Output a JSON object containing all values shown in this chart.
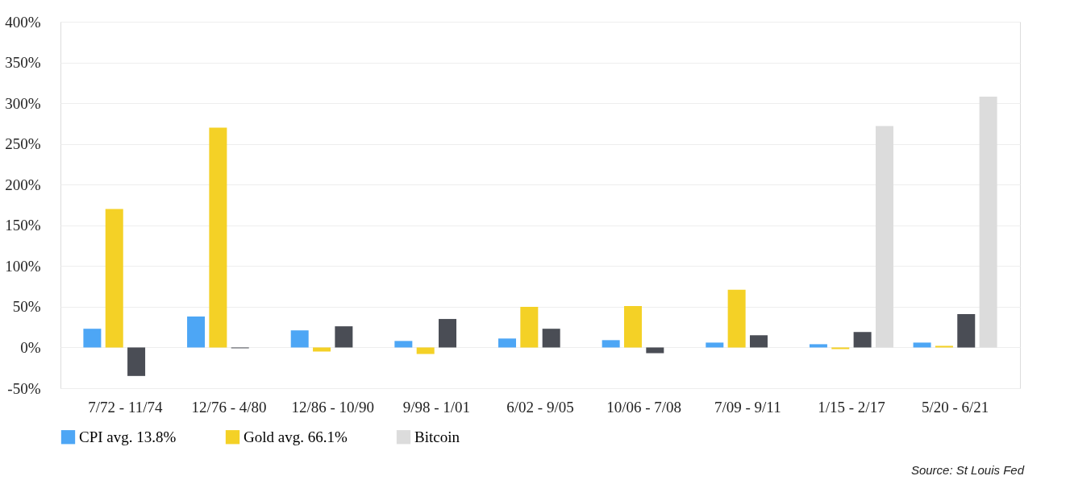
{
  "chart_data": {
    "type": "bar",
    "categories": [
      "7/72 - 11/74",
      "12/76 - 4/80",
      "12/86 - 10/90",
      "9/98 - 1/01",
      "6/02 - 9/05",
      "10/06 - 7/08",
      "7/09 - 9/11",
      "1/15 - 2/17",
      "5/20 - 6/21"
    ],
    "series": [
      {
        "name": "CPI avg. 13.8%",
        "color": "#4da6f5",
        "values": [
          23,
          38,
          21,
          8,
          11,
          9,
          6,
          4,
          6
        ]
      },
      {
        "name": "Gold avg. 66.1%",
        "color": "#f4d126",
        "values": [
          170,
          270,
          -5,
          -8,
          50,
          51,
          71,
          -2,
          2
        ]
      },
      {
        "color": "#4a4d55",
        "values": [
          -35,
          -1,
          26,
          35,
          23,
          -7,
          15,
          19,
          41
        ]
      },
      {
        "name": "Bitcoin",
        "color": "#dcdcdc",
        "values": [
          null,
          null,
          null,
          null,
          null,
          null,
          null,
          272,
          308
        ]
      }
    ],
    "ylim": [
      -50,
      400
    ],
    "yticks": [
      {
        "value": -50,
        "label": "-50%"
      },
      {
        "value": 0,
        "label": "0%"
      },
      {
        "value": 50,
        "label": "50%"
      },
      {
        "value": 100,
        "label": "100%"
      },
      {
        "value": 150,
        "label": "150%"
      },
      {
        "value": 200,
        "label": "200%"
      },
      {
        "value": 250,
        "label": "250%"
      },
      {
        "value": 300,
        "label": "300%"
      },
      {
        "value": 350,
        "label": "350%"
      },
      {
        "value": 400,
        "label": "400%"
      }
    ],
    "grid": "y",
    "legend": "bottom",
    "annotations": [
      "Source: St Louis Fed"
    ]
  }
}
